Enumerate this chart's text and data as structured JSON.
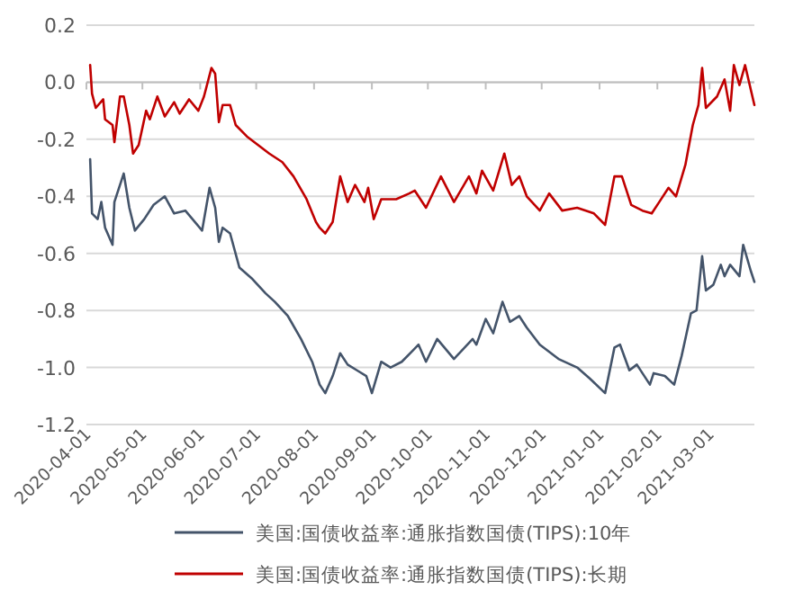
{
  "chart_data": {
    "type": "line",
    "xlim": [
      "2020-04-01",
      "2021-03-25"
    ],
    "ylim": [
      -1.2,
      0.2
    ],
    "yticks": [
      {
        "value": -1.2,
        "label": "-1.2"
      },
      {
        "value": -1.0,
        "label": "-1.0"
      },
      {
        "value": -0.8,
        "label": "-0.8"
      },
      {
        "value": -0.6,
        "label": "-0.6"
      },
      {
        "value": -0.4,
        "label": "-0.4"
      },
      {
        "value": -0.2,
        "label": "-0.2"
      },
      {
        "value": 0,
        "label": "0.0"
      },
      {
        "value": 0.2,
        "label": "0.2"
      }
    ],
    "xticks": [
      {
        "value": "2020-04-01",
        "label": "2020-04-01"
      },
      {
        "value": "2020-05-01",
        "label": "2020-05-01"
      },
      {
        "value": "2020-06-01",
        "label": "2020-06-01"
      },
      {
        "value": "2020-07-01",
        "label": "2020-07-01"
      },
      {
        "value": "2020-08-01",
        "label": "2020-08-01"
      },
      {
        "value": "2020-09-01",
        "label": "2020-09-01"
      },
      {
        "value": "2020-10-01",
        "label": "2020-10-01"
      },
      {
        "value": "2020-11-01",
        "label": "2020-11-01"
      },
      {
        "value": "2020-12-01",
        "label": "2020-12-01"
      },
      {
        "value": "2021-01-01",
        "label": "2021-01-01"
      },
      {
        "value": "2021-02-01",
        "label": "2021-02-01"
      },
      {
        "value": "2021-03-01",
        "label": "2021-03-01"
      }
    ],
    "grid": "y",
    "legend": "bottom",
    "series": [
      {
        "name": "美国:国债收益率:通胀指数国债(TIPS):10年",
        "color": "#44546a",
        "x": [
          "2020-04-03",
          "2020-04-04",
          "2020-04-07",
          "2020-04-09",
          "2020-04-11",
          "2020-04-15",
          "2020-04-16",
          "2020-04-21",
          "2020-04-24",
          "2020-04-27",
          "2020-05-02",
          "2020-05-07",
          "2020-05-13",
          "2020-05-18",
          "2020-05-24",
          "2020-06-02",
          "2020-06-06",
          "2020-06-09",
          "2020-06-11",
          "2020-06-13",
          "2020-06-17",
          "2020-06-22",
          "2020-06-29",
          "2020-07-06",
          "2020-07-11",
          "2020-07-18",
          "2020-07-25",
          "2020-07-31",
          "2020-08-04",
          "2020-08-07",
          "2020-08-11",
          "2020-08-15",
          "2020-08-19",
          "2020-08-24",
          "2020-08-29",
          "2020-09-01",
          "2020-09-06",
          "2020-09-11",
          "2020-09-17",
          "2020-09-23",
          "2020-09-26",
          "2020-09-30",
          "2020-10-06",
          "2020-10-15",
          "2020-10-25",
          "2020-10-27",
          "2020-11-01",
          "2020-11-05",
          "2020-11-10",
          "2020-11-14",
          "2020-11-19",
          "2020-11-23",
          "2020-11-30",
          "2020-12-10",
          "2020-12-20",
          "2020-12-27",
          "2021-01-04",
          "2021-01-09",
          "2021-01-12",
          "2021-01-17",
          "2021-01-21",
          "2021-01-28",
          "2021-01-30",
          "2021-02-05",
          "2021-02-10",
          "2021-02-14",
          "2021-02-19",
          "2021-02-22",
          "2021-02-25",
          "2021-02-27",
          "2021-03-03",
          "2021-03-07",
          "2021-03-09",
          "2021-03-12",
          "2021-03-17",
          "2021-03-19",
          "2021-03-23",
          "2021-03-25"
        ],
        "values": [
          -0.27,
          -0.46,
          -0.48,
          -0.42,
          -0.51,
          -0.57,
          -0.42,
          -0.32,
          -0.44,
          -0.52,
          -0.48,
          -0.43,
          -0.4,
          -0.46,
          -0.45,
          -0.52,
          -0.37,
          -0.44,
          -0.56,
          -0.51,
          -0.53,
          -0.65,
          -0.69,
          -0.74,
          -0.77,
          -0.82,
          -0.9,
          -0.98,
          -1.06,
          -1.09,
          -1.03,
          -0.95,
          -0.99,
          -1.01,
          -1.03,
          -1.09,
          -0.98,
          -1.0,
          -0.98,
          -0.94,
          -0.92,
          -0.98,
          -0.9,
          -0.97,
          -0.9,
          -0.92,
          -0.83,
          -0.88,
          -0.77,
          -0.84,
          -0.82,
          -0.86,
          -0.92,
          -0.97,
          -1.0,
          -1.04,
          -1.09,
          -0.93,
          -0.92,
          -1.01,
          -0.99,
          -1.06,
          -1.02,
          -1.03,
          -1.06,
          -0.96,
          -0.81,
          -0.8,
          -0.61,
          -0.73,
          -0.71,
          -0.64,
          -0.68,
          -0.64,
          -0.68,
          -0.57,
          -0.66,
          -0.7
        ]
      },
      {
        "name": "美国:国债收益率:通胀指数国债(TIPS):长期",
        "color": "#c00000",
        "x": [
          "2020-04-03",
          "2020-04-04",
          "2020-04-06",
          "2020-04-10",
          "2020-04-11",
          "2020-04-15",
          "2020-04-16",
          "2020-04-19",
          "2020-04-21",
          "2020-04-24",
          "2020-04-26",
          "2020-04-29",
          "2020-05-03",
          "2020-05-05",
          "2020-05-09",
          "2020-05-13",
          "2020-05-18",
          "2020-05-21",
          "2020-05-26",
          "2020-05-31",
          "2020-06-03",
          "2020-06-07",
          "2020-06-09",
          "2020-06-11",
          "2020-06-13",
          "2020-06-17",
          "2020-06-20",
          "2020-06-26",
          "2020-07-02",
          "2020-07-08",
          "2020-07-15",
          "2020-07-21",
          "2020-07-28",
          "2020-08-02",
          "2020-08-04",
          "2020-08-07",
          "2020-08-11",
          "2020-08-15",
          "2020-08-19",
          "2020-08-23",
          "2020-08-28",
          "2020-08-30",
          "2020-09-02",
          "2020-09-06",
          "2020-09-14",
          "2020-09-21",
          "2020-09-24",
          "2020-09-30",
          "2020-10-08",
          "2020-10-15",
          "2020-10-23",
          "2020-10-27",
          "2020-10-30",
          "2020-11-05",
          "2020-11-11",
          "2020-11-15",
          "2020-11-19",
          "2020-11-23",
          "2020-11-30",
          "2020-12-05",
          "2020-12-12",
          "2020-12-20",
          "2020-12-29",
          "2021-01-04",
          "2021-01-09",
          "2021-01-13",
          "2021-01-18",
          "2021-01-24",
          "2021-01-29",
          "2021-02-02",
          "2021-02-07",
          "2021-02-11",
          "2021-02-16",
          "2021-02-20",
          "2021-02-23",
          "2021-02-25",
          "2021-02-27",
          "2021-03-05",
          "2021-03-09",
          "2021-03-12",
          "2021-03-14",
          "2021-03-17",
          "2021-03-20",
          "2021-03-25"
        ],
        "values": [
          0.06,
          -0.04,
          -0.09,
          -0.06,
          -0.13,
          -0.15,
          -0.21,
          -0.05,
          -0.05,
          -0.15,
          -0.25,
          -0.22,
          -0.1,
          -0.13,
          -0.05,
          -0.12,
          -0.07,
          -0.11,
          -0.06,
          -0.1,
          -0.05,
          0.05,
          0.03,
          -0.14,
          -0.08,
          -0.08,
          -0.15,
          -0.19,
          -0.22,
          -0.25,
          -0.28,
          -0.33,
          -0.41,
          -0.49,
          -0.51,
          -0.53,
          -0.49,
          -0.33,
          -0.42,
          -0.36,
          -0.42,
          -0.37,
          -0.48,
          -0.41,
          -0.41,
          -0.39,
          -0.38,
          -0.44,
          -0.33,
          -0.42,
          -0.33,
          -0.39,
          -0.31,
          -0.38,
          -0.25,
          -0.36,
          -0.33,
          -0.4,
          -0.45,
          -0.39,
          -0.45,
          -0.44,
          -0.46,
          -0.5,
          -0.33,
          -0.33,
          -0.43,
          -0.45,
          -0.46,
          -0.42,
          -0.37,
          -0.4,
          -0.29,
          -0.15,
          -0.08,
          0.05,
          -0.09,
          -0.05,
          0.01,
          -0.1,
          0.06,
          -0.01,
          0.06,
          -0.08
        ]
      }
    ]
  }
}
